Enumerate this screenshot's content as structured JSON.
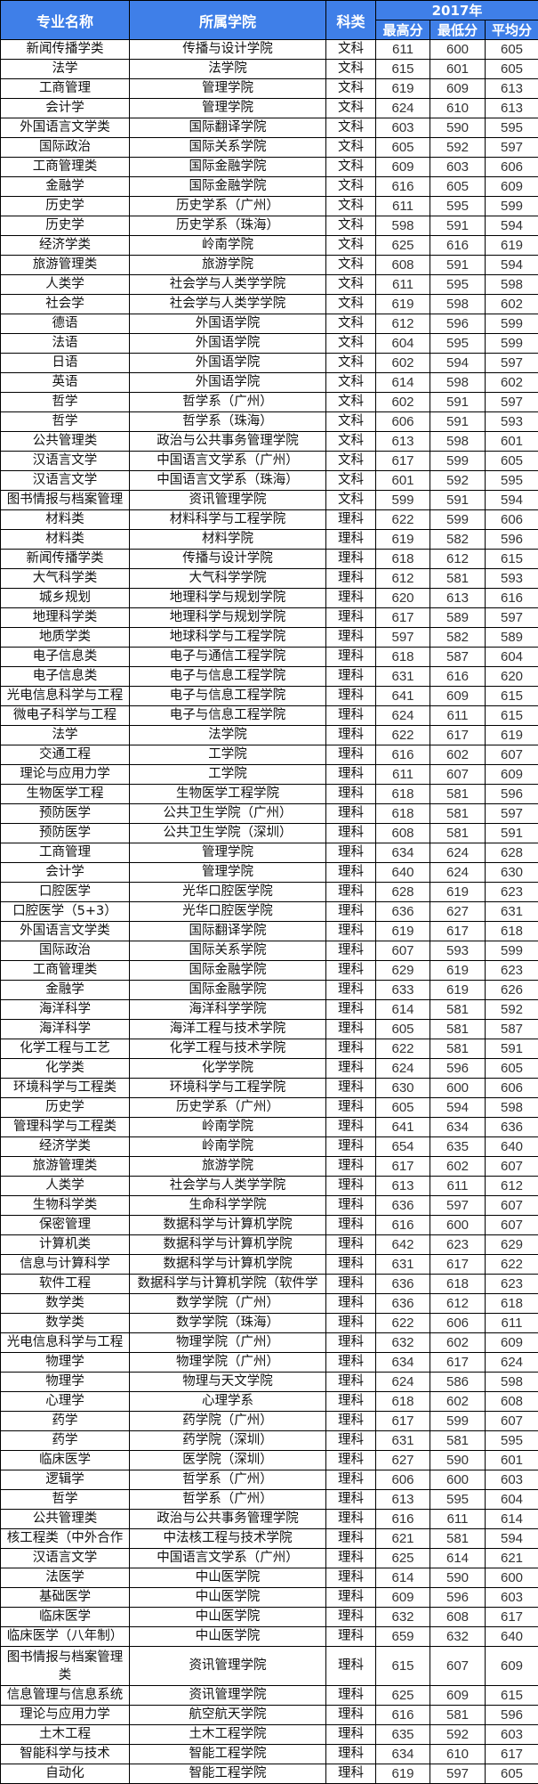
{
  "header": {
    "major": "专业名称",
    "college": "所属学院",
    "type": "科类",
    "year": "2017年",
    "max": "最高分",
    "min": "最低分",
    "avg": "平均分"
  },
  "colors": {
    "header_bg": "#3f7fe8",
    "header_text": "#ffffff",
    "border": "#000000"
  },
  "rows": [
    [
      "新闻传播学类",
      "传播与设计学院",
      "文科",
      "611",
      "600",
      "605"
    ],
    [
      "法学",
      "法学院",
      "文科",
      "615",
      "601",
      "605"
    ],
    [
      "工商管理",
      "管理学院",
      "文科",
      "619",
      "609",
      "613"
    ],
    [
      "会计学",
      "管理学院",
      "文科",
      "624",
      "610",
      "613"
    ],
    [
      "外国语言文学类",
      "国际翻译学院",
      "文科",
      "603",
      "590",
      "595"
    ],
    [
      "国际政治",
      "国际关系学院",
      "文科",
      "605",
      "592",
      "597"
    ],
    [
      "工商管理类",
      "国际金融学院",
      "文科",
      "609",
      "603",
      "606"
    ],
    [
      "金融学",
      "国际金融学院",
      "文科",
      "616",
      "605",
      "609"
    ],
    [
      "历史学",
      "历史学系（广州）",
      "文科",
      "611",
      "595",
      "599"
    ],
    [
      "历史学",
      "历史学系（珠海）",
      "文科",
      "598",
      "591",
      "594"
    ],
    [
      "经济学类",
      "岭南学院",
      "文科",
      "625",
      "616",
      "619"
    ],
    [
      "旅游管理类",
      "旅游学院",
      "文科",
      "608",
      "591",
      "594"
    ],
    [
      "人类学",
      "社会学与人类学学院",
      "文科",
      "611",
      "595",
      "598"
    ],
    [
      "社会学",
      "社会学与人类学学院",
      "文科",
      "619",
      "598",
      "602"
    ],
    [
      "德语",
      "外国语学院",
      "文科",
      "612",
      "596",
      "599"
    ],
    [
      "法语",
      "外国语学院",
      "文科",
      "604",
      "595",
      "599"
    ],
    [
      "日语",
      "外国语学院",
      "文科",
      "602",
      "594",
      "597"
    ],
    [
      "英语",
      "外国语学院",
      "文科",
      "614",
      "598",
      "602"
    ],
    [
      "哲学",
      "哲学系（广州）",
      "文科",
      "602",
      "591",
      "597"
    ],
    [
      "哲学",
      "哲学系（珠海）",
      "文科",
      "606",
      "591",
      "593"
    ],
    [
      "公共管理类",
      "政治与公共事务管理学院",
      "文科",
      "613",
      "598",
      "601"
    ],
    [
      "汉语言文学",
      "中国语言文学系（广州）",
      "文科",
      "617",
      "599",
      "605"
    ],
    [
      "汉语言文学",
      "中国语言文学系（珠海）",
      "文科",
      "601",
      "592",
      "595"
    ],
    [
      "图书情报与档案管理",
      "资讯管理学院",
      "文科",
      "599",
      "591",
      "594"
    ],
    [
      "材料类",
      "材料科学与工程学院",
      "理科",
      "622",
      "599",
      "606"
    ],
    [
      "材料类",
      "材料学院",
      "理科",
      "619",
      "582",
      "596"
    ],
    [
      "新闻传播学类",
      "传播与设计学院",
      "理科",
      "618",
      "612",
      "615"
    ],
    [
      "大气科学类",
      "大气科学学院",
      "理科",
      "612",
      "581",
      "593"
    ],
    [
      "城乡规划",
      "地理科学与规划学院",
      "理科",
      "620",
      "613",
      "616"
    ],
    [
      "地理科学类",
      "地理科学与规划学院",
      "理科",
      "617",
      "589",
      "597"
    ],
    [
      "地质学类",
      "地球科学与工程学院",
      "理科",
      "597",
      "582",
      "589"
    ],
    [
      "电子信息类",
      "电子与通信工程学院",
      "理科",
      "618",
      "587",
      "604"
    ],
    [
      "电子信息类",
      "电子与信息工程学院",
      "理科",
      "631",
      "616",
      "620"
    ],
    [
      "光电信息科学与工程",
      "电子与信息工程学院",
      "理科",
      "641",
      "609",
      "615"
    ],
    [
      "微电子科学与工程",
      "电子与信息工程学院",
      "理科",
      "624",
      "611",
      "615"
    ],
    [
      "法学",
      "法学院",
      "理科",
      "622",
      "617",
      "619"
    ],
    [
      "交通工程",
      "工学院",
      "理科",
      "616",
      "602",
      "607"
    ],
    [
      "理论与应用力学",
      "工学院",
      "理科",
      "611",
      "607",
      "609"
    ],
    [
      "生物医学工程",
      "生物医学工程学院",
      "理科",
      "618",
      "581",
      "596"
    ],
    [
      "预防医学",
      "公共卫生学院（广州）",
      "理科",
      "618",
      "581",
      "597"
    ],
    [
      "预防医学",
      "公共卫生学院（深圳）",
      "理科",
      "608",
      "581",
      "591"
    ],
    [
      "工商管理",
      "管理学院",
      "理科",
      "634",
      "624",
      "628"
    ],
    [
      "会计学",
      "管理学院",
      "理科",
      "640",
      "624",
      "630"
    ],
    [
      "口腔医学",
      "光华口腔医学院",
      "理科",
      "628",
      "619",
      "623"
    ],
    [
      "口腔医学（5+3）",
      "光华口腔医学院",
      "理科",
      "636",
      "627",
      "631"
    ],
    [
      "外国语言文学类",
      "国际翻译学院",
      "理科",
      "619",
      "617",
      "618"
    ],
    [
      "国际政治",
      "国际关系学院",
      "理科",
      "607",
      "593",
      "599"
    ],
    [
      "工商管理类",
      "国际金融学院",
      "理科",
      "629",
      "619",
      "623"
    ],
    [
      "金融学",
      "国际金融学院",
      "理科",
      "633",
      "619",
      "626"
    ],
    [
      "海洋科学",
      "海洋科学学院",
      "理科",
      "614",
      "581",
      "592"
    ],
    [
      "海洋科学",
      "海洋工程与技术学院",
      "理科",
      "605",
      "581",
      "587"
    ],
    [
      "化学工程与工艺",
      "化学工程与技术学院",
      "理科",
      "622",
      "581",
      "591"
    ],
    [
      "化学类",
      "化学学院",
      "理科",
      "624",
      "596",
      "605"
    ],
    [
      "环境科学与工程类",
      "环境科学与工程学院",
      "理科",
      "630",
      "600",
      "606"
    ],
    [
      "历史学",
      "历史学系（广州）",
      "理科",
      "605",
      "594",
      "598"
    ],
    [
      "管理科学与工程类",
      "岭南学院",
      "理科",
      "641",
      "634",
      "636"
    ],
    [
      "经济学类",
      "岭南学院",
      "理科",
      "654",
      "635",
      "640"
    ],
    [
      "旅游管理类",
      "旅游学院",
      "理科",
      "617",
      "602",
      "607"
    ],
    [
      "人类学",
      "社会学与人类学学院",
      "理科",
      "613",
      "611",
      "612"
    ],
    [
      "生物科学类",
      "生命科学学院",
      "理科",
      "636",
      "597",
      "607"
    ],
    [
      "保密管理",
      "数据科学与计算机学院",
      "理科",
      "616",
      "600",
      "607"
    ],
    [
      "计算机类",
      "数据科学与计算机学院",
      "理科",
      "642",
      "623",
      "629"
    ],
    [
      "信息与计算科学",
      "数据科学与计算机学院",
      "理科",
      "631",
      "617",
      "622"
    ],
    [
      "软件工程",
      "数据科学与计算机学院（软件学",
      "理科",
      "636",
      "618",
      "623"
    ],
    [
      "数学类",
      "数学学院（广州）",
      "理科",
      "636",
      "612",
      "618"
    ],
    [
      "数学类",
      "数学学院（珠海）",
      "理科",
      "622",
      "606",
      "611"
    ],
    [
      "光电信息科学与工程",
      "物理学院（广州）",
      "理科",
      "632",
      "602",
      "609"
    ],
    [
      "物理学",
      "物理学院（广州）",
      "理科",
      "634",
      "617",
      "624"
    ],
    [
      "物理学",
      "物理与天文学院",
      "理科",
      "624",
      "586",
      "598"
    ],
    [
      "心理学",
      "心理学系",
      "理科",
      "618",
      "602",
      "608"
    ],
    [
      "药学",
      "药学院（广州）",
      "理科",
      "617",
      "599",
      "607"
    ],
    [
      "药学",
      "药学院（深圳）",
      "理科",
      "631",
      "581",
      "595"
    ],
    [
      "临床医学",
      "医学院（深圳）",
      "理科",
      "627",
      "590",
      "601"
    ],
    [
      "逻辑学",
      "哲学系（广州）",
      "理科",
      "606",
      "600",
      "603"
    ],
    [
      "哲学",
      "哲学系（广州）",
      "理科",
      "613",
      "595",
      "604"
    ],
    [
      "公共管理类",
      "政治与公共事务管理学院",
      "理科",
      "616",
      "611",
      "614"
    ],
    [
      "核工程类（中外合作",
      "中法核工程与技术学院",
      "理科",
      "621",
      "581",
      "594"
    ],
    [
      "汉语言文学",
      "中国语言文学系（广州）",
      "理科",
      "625",
      "614",
      "621"
    ],
    [
      "法医学",
      "中山医学院",
      "理科",
      "614",
      "590",
      "600"
    ],
    [
      "基础医学",
      "中山医学院",
      "理科",
      "609",
      "596",
      "603"
    ],
    [
      "临床医学",
      "中山医学院",
      "理科",
      "632",
      "608",
      "617"
    ],
    [
      "临床医学（八年制）",
      "中山医学院",
      "理科",
      "659",
      "632",
      "640"
    ],
    [
      "图书情报与档案管理类",
      "资讯管理学院",
      "理科",
      "615",
      "607",
      "609"
    ],
    [
      "信息管理与信息系统",
      "资讯管理学院",
      "理科",
      "625",
      "609",
      "615"
    ],
    [
      "理论与应用力学",
      "航空航天学院",
      "理科",
      "616",
      "581",
      "596"
    ],
    [
      "土木工程",
      "土木工程学院",
      "理科",
      "635",
      "592",
      "603"
    ],
    [
      "智能科学与技术",
      "智能工程学院",
      "理科",
      "634",
      "610",
      "617"
    ],
    [
      "自动化",
      "智能工程学院",
      "理科",
      "619",
      "597",
      "605"
    ]
  ]
}
